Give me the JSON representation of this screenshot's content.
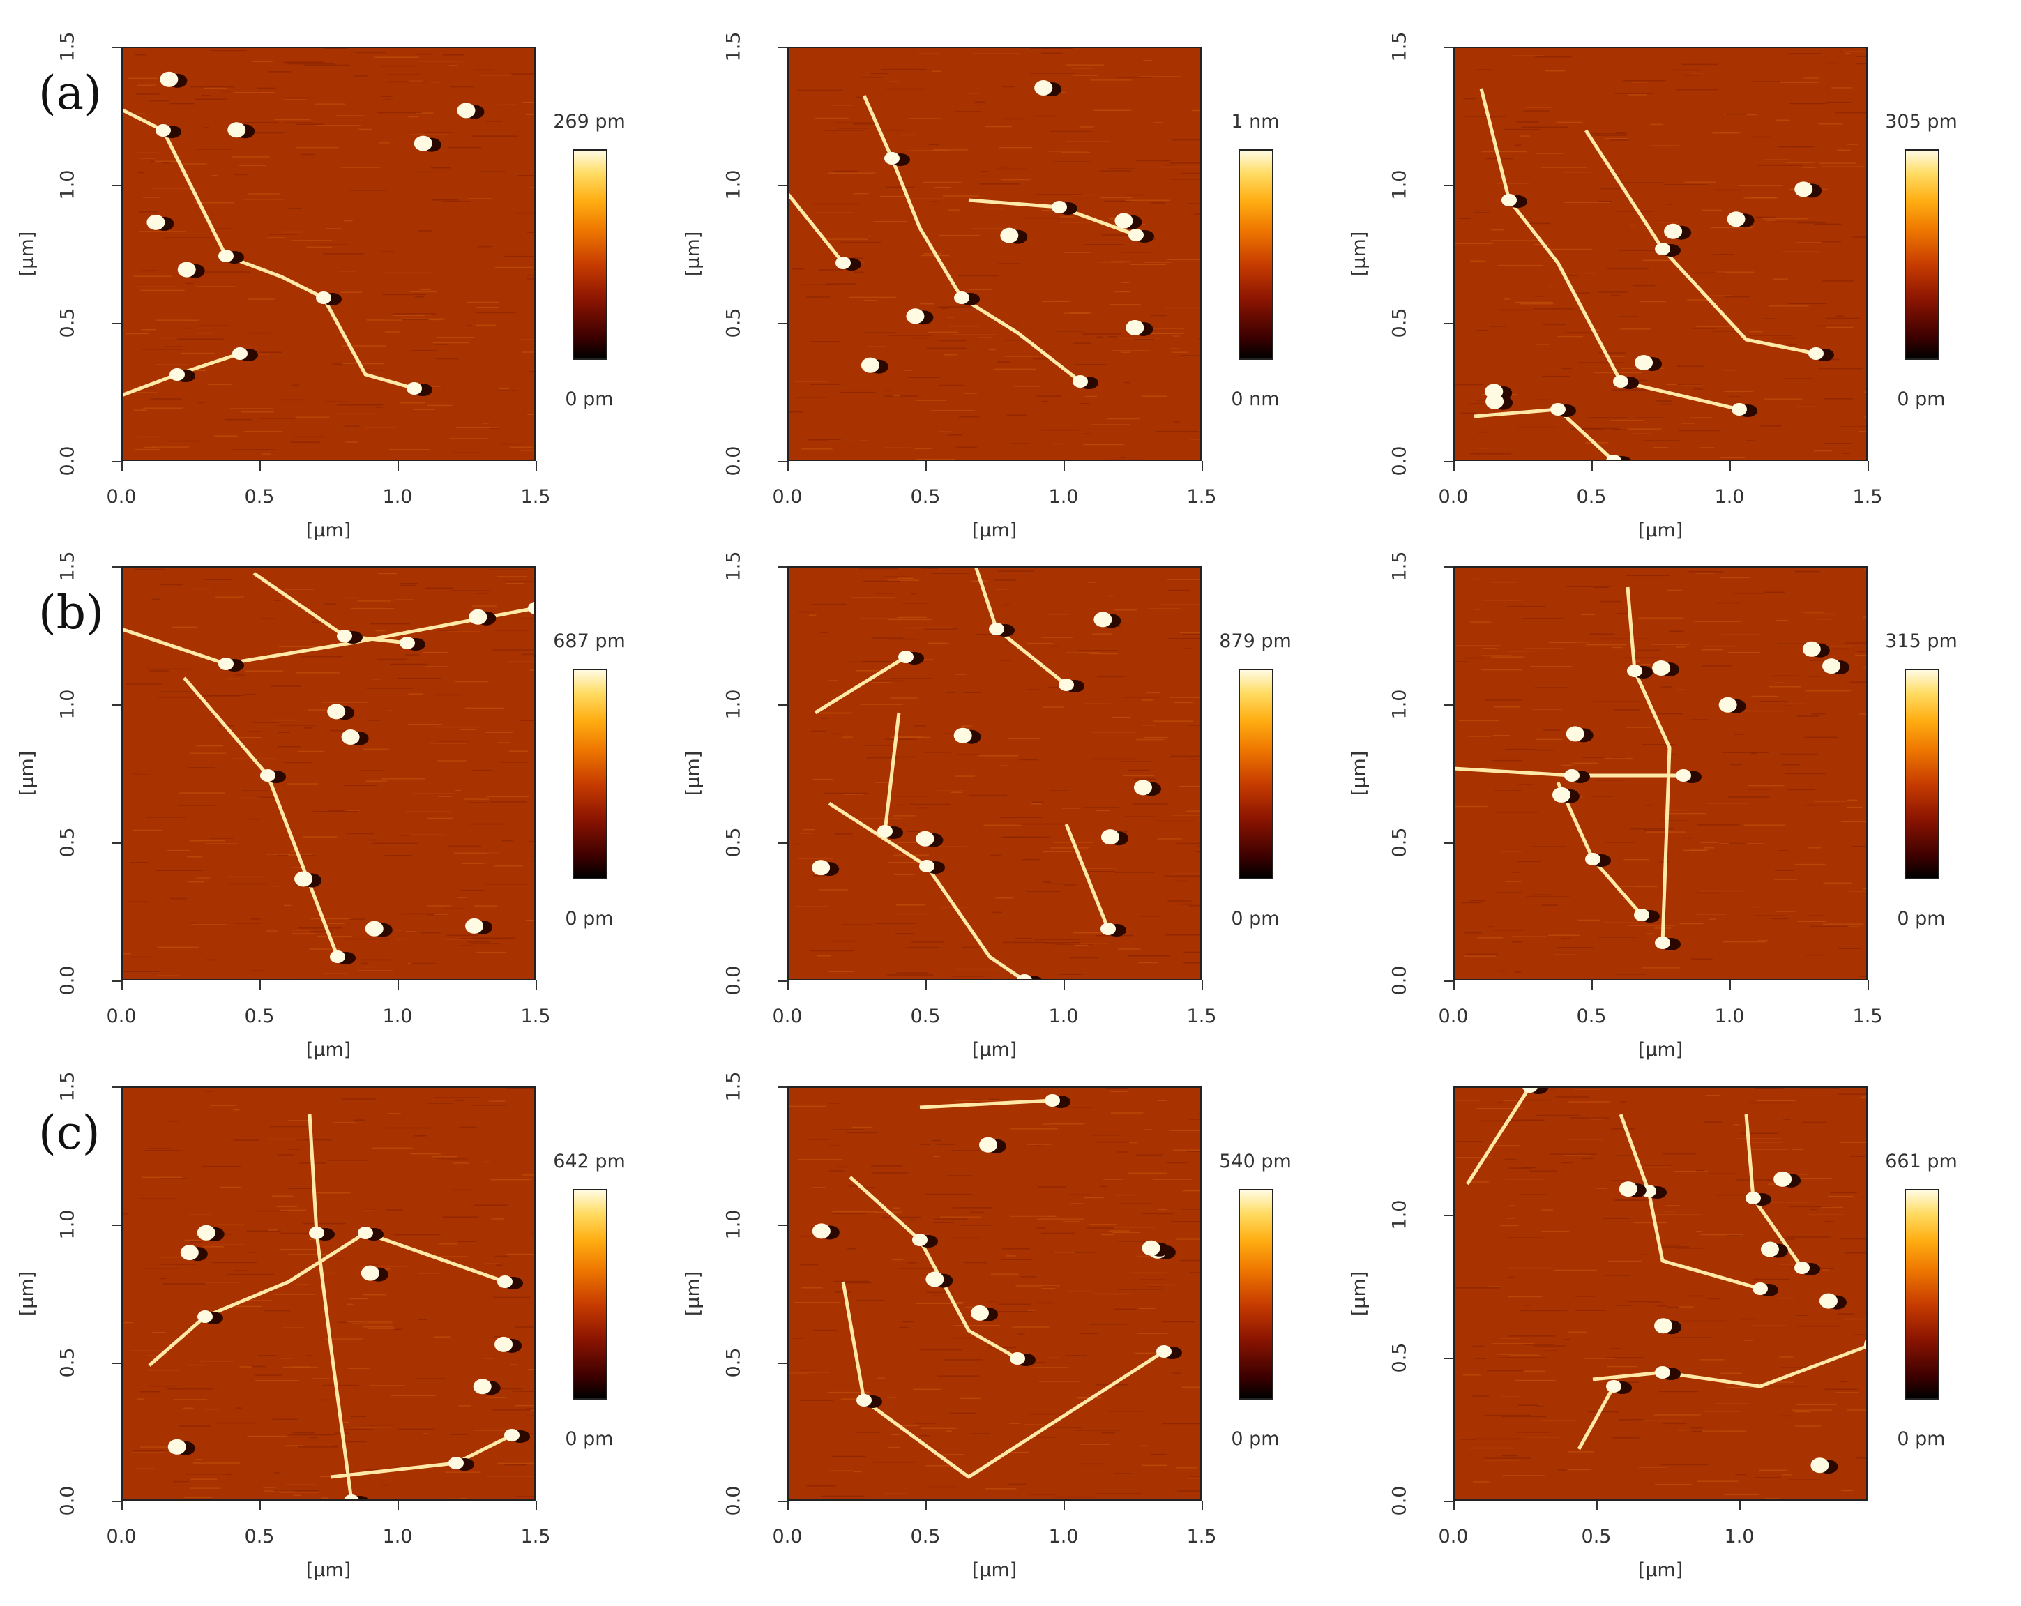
{
  "axis_unit": "[µm]",
  "panels": [
    {
      "row_label": "(a)",
      "xticks": [
        "0.0",
        "0.5",
        "1.0",
        "1.5"
      ],
      "yticks": [
        "0.0",
        "0.5",
        "1.0",
        "1.5"
      ],
      "cbar_max": "269 pm",
      "cbar_min": "0 pm"
    },
    {
      "row_label": "",
      "xticks": [
        "0.0",
        "0.5",
        "1.0",
        "1.5"
      ],
      "yticks": [
        "0.0",
        "0.5",
        "1.0",
        "1.5"
      ],
      "cbar_max": "1 nm",
      "cbar_min": "0 nm"
    },
    {
      "row_label": "",
      "xticks": [
        "0.0",
        "0.5",
        "1.0",
        "1.5"
      ],
      "yticks": [
        "0.0",
        "0.5",
        "1.0",
        "1.5"
      ],
      "cbar_max": "305 pm",
      "cbar_min": "0 pm"
    },
    {
      "row_label": "(b)",
      "xticks": [
        "0.0",
        "0.5",
        "1.0",
        "1.5"
      ],
      "yticks": [
        "0.0",
        "0.5",
        "1.0",
        "1.5"
      ],
      "cbar_max": "687 pm",
      "cbar_min": "0 pm"
    },
    {
      "row_label": "",
      "xticks": [
        "0.0",
        "0.5",
        "1.0",
        "1.5"
      ],
      "yticks": [
        "0.0",
        "0.5",
        "1.0",
        "1.5"
      ],
      "cbar_max": "879 pm",
      "cbar_min": "0 pm"
    },
    {
      "row_label": "",
      "xticks": [
        "0.0",
        "0.5",
        "1.0",
        "1.5"
      ],
      "yticks": [
        "0.0",
        "0.5",
        "1.0",
        "1.5"
      ],
      "cbar_max": "315 pm",
      "cbar_min": "0 pm"
    },
    {
      "row_label": "(c)",
      "xticks": [
        "0.0",
        "0.5",
        "1.0",
        "1.5"
      ],
      "yticks": [
        "0.0",
        "0.5",
        "1.0",
        "1.5"
      ],
      "cbar_max": "642 pm",
      "cbar_min": "0 pm"
    },
    {
      "row_label": "",
      "xticks": [
        "0.0",
        "0.5",
        "1.0",
        "1.5"
      ],
      "yticks": [
        "0.0",
        "0.5",
        "1.0",
        "1.5"
      ],
      "cbar_max": "540 pm",
      "cbar_min": "0 pm"
    },
    {
      "row_label": "",
      "xticks": [
        "0.0",
        "0.5",
        "1.0"
      ],
      "yticks": [
        "0.0",
        "0.5",
        "1.0"
      ],
      "cbar_max": "661 pm",
      "cbar_min": "0 pm"
    }
  ]
}
